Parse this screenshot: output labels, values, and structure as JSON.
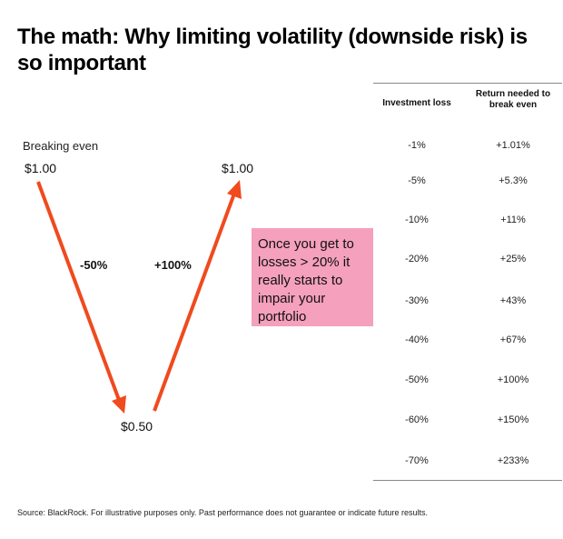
{
  "title": "The math: Why limiting volatility (downside risk) is so important",
  "diagram": {
    "heading": "Breaking even",
    "start_price": "$1.00",
    "bottom_price": "$0.50",
    "end_price": "$1.00",
    "down_label": "-50%",
    "up_label": "+100%",
    "arrow_color": "#f04a1e",
    "callout": "Once you get to losses > 20% it really starts to impair your portfolio",
    "callout_color": "#f5a0bc"
  },
  "table": {
    "headers": [
      "Investment loss",
      "Return needed to break even"
    ],
    "rows": [
      [
        "-1%",
        "+1.01%"
      ],
      [
        "-5%",
        "+5.3%"
      ],
      [
        "-10%",
        "+11%"
      ],
      [
        "-20%",
        "+25%"
      ],
      [
        "-30%",
        "+43%"
      ],
      [
        "-40%",
        "+67%"
      ],
      [
        "-50%",
        "+100%"
      ],
      [
        "-60%",
        "+150%"
      ],
      [
        "-70%",
        "+233%"
      ]
    ]
  },
  "source": "Source: BlackRock. For illustrative purposes only. Past performance does not guarantee or indicate future results."
}
